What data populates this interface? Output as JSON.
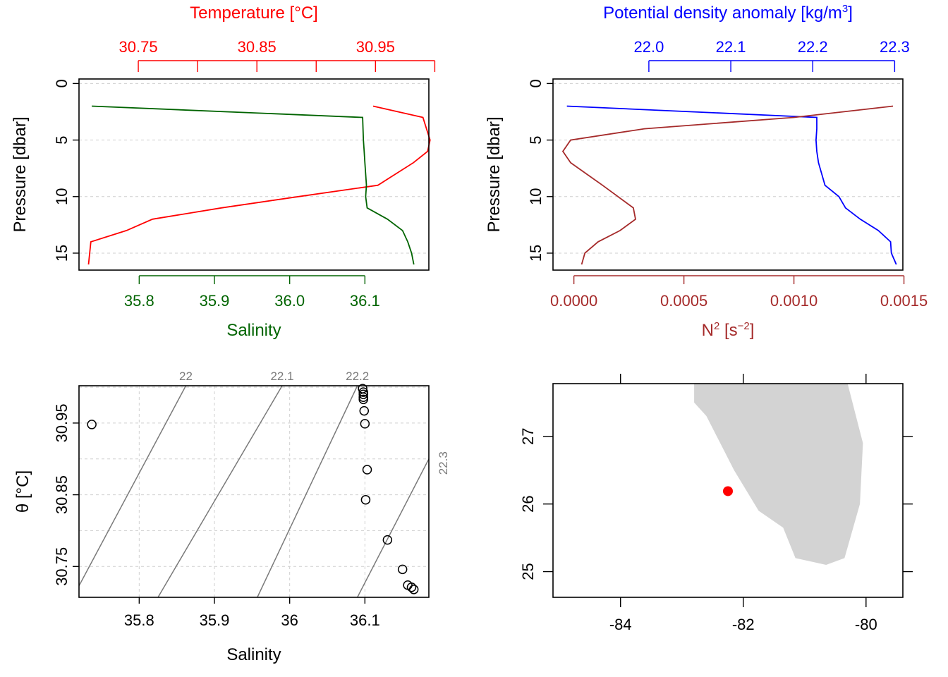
{
  "chart_data": [
    {
      "type": "line",
      "title": "",
      "ylabel": "Pressure [dbar]",
      "ylim": [
        16.5,
        -0.4
      ],
      "yticks": [
        0,
        5,
        10,
        15
      ],
      "grid": true,
      "axes": {
        "top": {
          "label": "Temperature [°C]",
          "color": "#ff0000",
          "lim": [
            30.7,
            30.995
          ],
          "ticks": [
            30.75,
            30.8,
            30.85,
            30.9,
            30.95,
            31.0
          ],
          "tick_labels": [
            "30.75",
            "",
            "30.85",
            "",
            "30.95",
            ""
          ]
        },
        "bottom": {
          "label": "Salinity",
          "color": "#006400",
          "lim": [
            35.72,
            36.185
          ],
          "ticks": [
            35.8,
            35.9,
            36.0,
            36.1
          ],
          "tick_labels": [
            "35.8",
            "35.9",
            "36.0",
            "36.1"
          ]
        }
      },
      "series": [
        {
          "name": "Temperature [°C]",
          "axis": "top",
          "color": "#ff0000",
          "x": [
            30.948,
            30.99,
            30.996,
            30.994,
            30.982,
            30.952,
            30.885,
            30.82,
            30.762,
            30.74,
            30.71,
            30.708
          ],
          "y": [
            2,
            3,
            5,
            6,
            7,
            9,
            10,
            11,
            12,
            13,
            14,
            16
          ]
        },
        {
          "name": "Salinity",
          "axis": "bottom",
          "color": "#006400",
          "x": [
            35.737,
            36.097,
            36.098,
            36.099,
            36.1,
            36.102,
            36.101,
            36.103,
            36.13,
            36.15,
            36.157,
            36.162,
            36.165
          ],
          "y": [
            2,
            3,
            5,
            6,
            7,
            9,
            10,
            11,
            12,
            13,
            14,
            15,
            16
          ]
        }
      ]
    },
    {
      "type": "line",
      "title": "",
      "ylabel": "Pressure [dbar]",
      "ylim": [
        16.5,
        -0.4
      ],
      "yticks": [
        0,
        5,
        10,
        15
      ],
      "grid": true,
      "axes": {
        "top": {
          "label": "Potential density anomaly [kg/m³]",
          "color": "#0000ff",
          "lim": [
            21.883,
            22.31
          ],
          "ticks": [
            22.0,
            22.1,
            22.2,
            22.3
          ],
          "tick_labels": [
            "22.0",
            "22.1",
            "22.2",
            "22.3"
          ]
        },
        "bottom": {
          "label": "N² [s⁻²]",
          "color": "#a52a2a",
          "lim": [
            -9.5e-05,
            0.001495
          ],
          "ticks": [
            0.0,
            0.0005,
            0.001,
            0.0015
          ],
          "tick_labels": [
            "0.0000",
            "0.0005",
            "0.0010",
            "0.0015"
          ]
        }
      },
      "series": [
        {
          "name": "Potential density anomaly [kg/m³]",
          "axis": "top",
          "color": "#0000ff",
          "x": [
            21.9,
            22.205,
            22.205,
            22.204,
            22.205,
            22.207,
            22.215,
            22.232,
            22.24,
            22.258,
            22.28,
            22.295,
            22.296,
            22.302
          ],
          "y": [
            2,
            3,
            4,
            5,
            6,
            7,
            9,
            10,
            11,
            12,
            13,
            14,
            15,
            16
          ]
        },
        {
          "name": "N² [s⁻²]",
          "axis": "bottom",
          "color": "#a52a2a",
          "x": [
            0.00145,
            0.001,
            0.00032,
            -1.5e-05,
            -5e-05,
            -1.5e-05,
            0.00013,
            0.00027,
            0.00028,
            0.00021,
            0.00011,
            5e-05,
            3.5e-05
          ],
          "y": [
            2,
            3,
            4,
            5,
            6,
            7,
            9,
            11,
            12,
            13,
            14,
            15,
            16
          ]
        }
      ]
    },
    {
      "type": "scatter",
      "title": "",
      "xlabel": "Salinity",
      "ylabel": "θ [°C]",
      "xlim": [
        35.72,
        36.185
      ],
      "ylim": [
        30.707,
        31.002
      ],
      "xticks": [
        35.8,
        35.9,
        36.0,
        36.1
      ],
      "yticks": [
        30.75,
        30.85,
        30.95
      ],
      "grid": true,
      "x": [
        35.737,
        36.097,
        36.098,
        36.098,
        36.098,
        36.098,
        36.099,
        36.1,
        36.103,
        36.101,
        36.13,
        36.15,
        36.157,
        36.162,
        36.165
      ],
      "y": [
        30.948,
        30.998,
        30.993,
        30.99,
        30.986,
        30.983,
        30.967,
        30.949,
        30.885,
        30.843,
        30.787,
        30.746,
        30.724,
        30.721,
        30.718
      ],
      "isopycnals": [
        {
          "label": "22",
          "s0": 35.72,
          "t0": 30.723,
          "s1": 35.862,
          "t1": 31.002
        },
        {
          "label": "22.1",
          "s0": 35.825,
          "t0": 30.707,
          "s1": 35.99,
          "t1": 31.002
        },
        {
          "label": "22.2",
          "s0": 35.957,
          "t0": 30.707,
          "s1": 36.09,
          "t1": 31.002
        },
        {
          "label": "22.3",
          "s0": 36.09,
          "t0": 30.707,
          "s1": 36.185,
          "t1": 30.9
        }
      ]
    },
    {
      "type": "map",
      "title": "",
      "xlim": [
        -85.1,
        -79.4
      ],
      "ylim": [
        24.62,
        27.78
      ],
      "xticks": [
        -84,
        -82,
        -80
      ],
      "yticks": [
        25,
        26,
        27
      ],
      "land_color": "#d3d3d3",
      "station": {
        "lon": -82.25,
        "lat": 26.19,
        "color": "#ff0000"
      },
      "land": [
        [
          -82.8,
          27.78
        ],
        [
          -80.3,
          27.78
        ],
        [
          -80.05,
          26.9
        ],
        [
          -80.1,
          26.0
        ],
        [
          -80.35,
          25.2
        ],
        [
          -80.65,
          25.1
        ],
        [
          -81.15,
          25.2
        ],
        [
          -81.35,
          25.65
        ],
        [
          -81.75,
          25.9
        ],
        [
          -82.15,
          26.5
        ],
        [
          -82.6,
          27.3
        ],
        [
          -82.8,
          27.5
        ]
      ]
    }
  ]
}
